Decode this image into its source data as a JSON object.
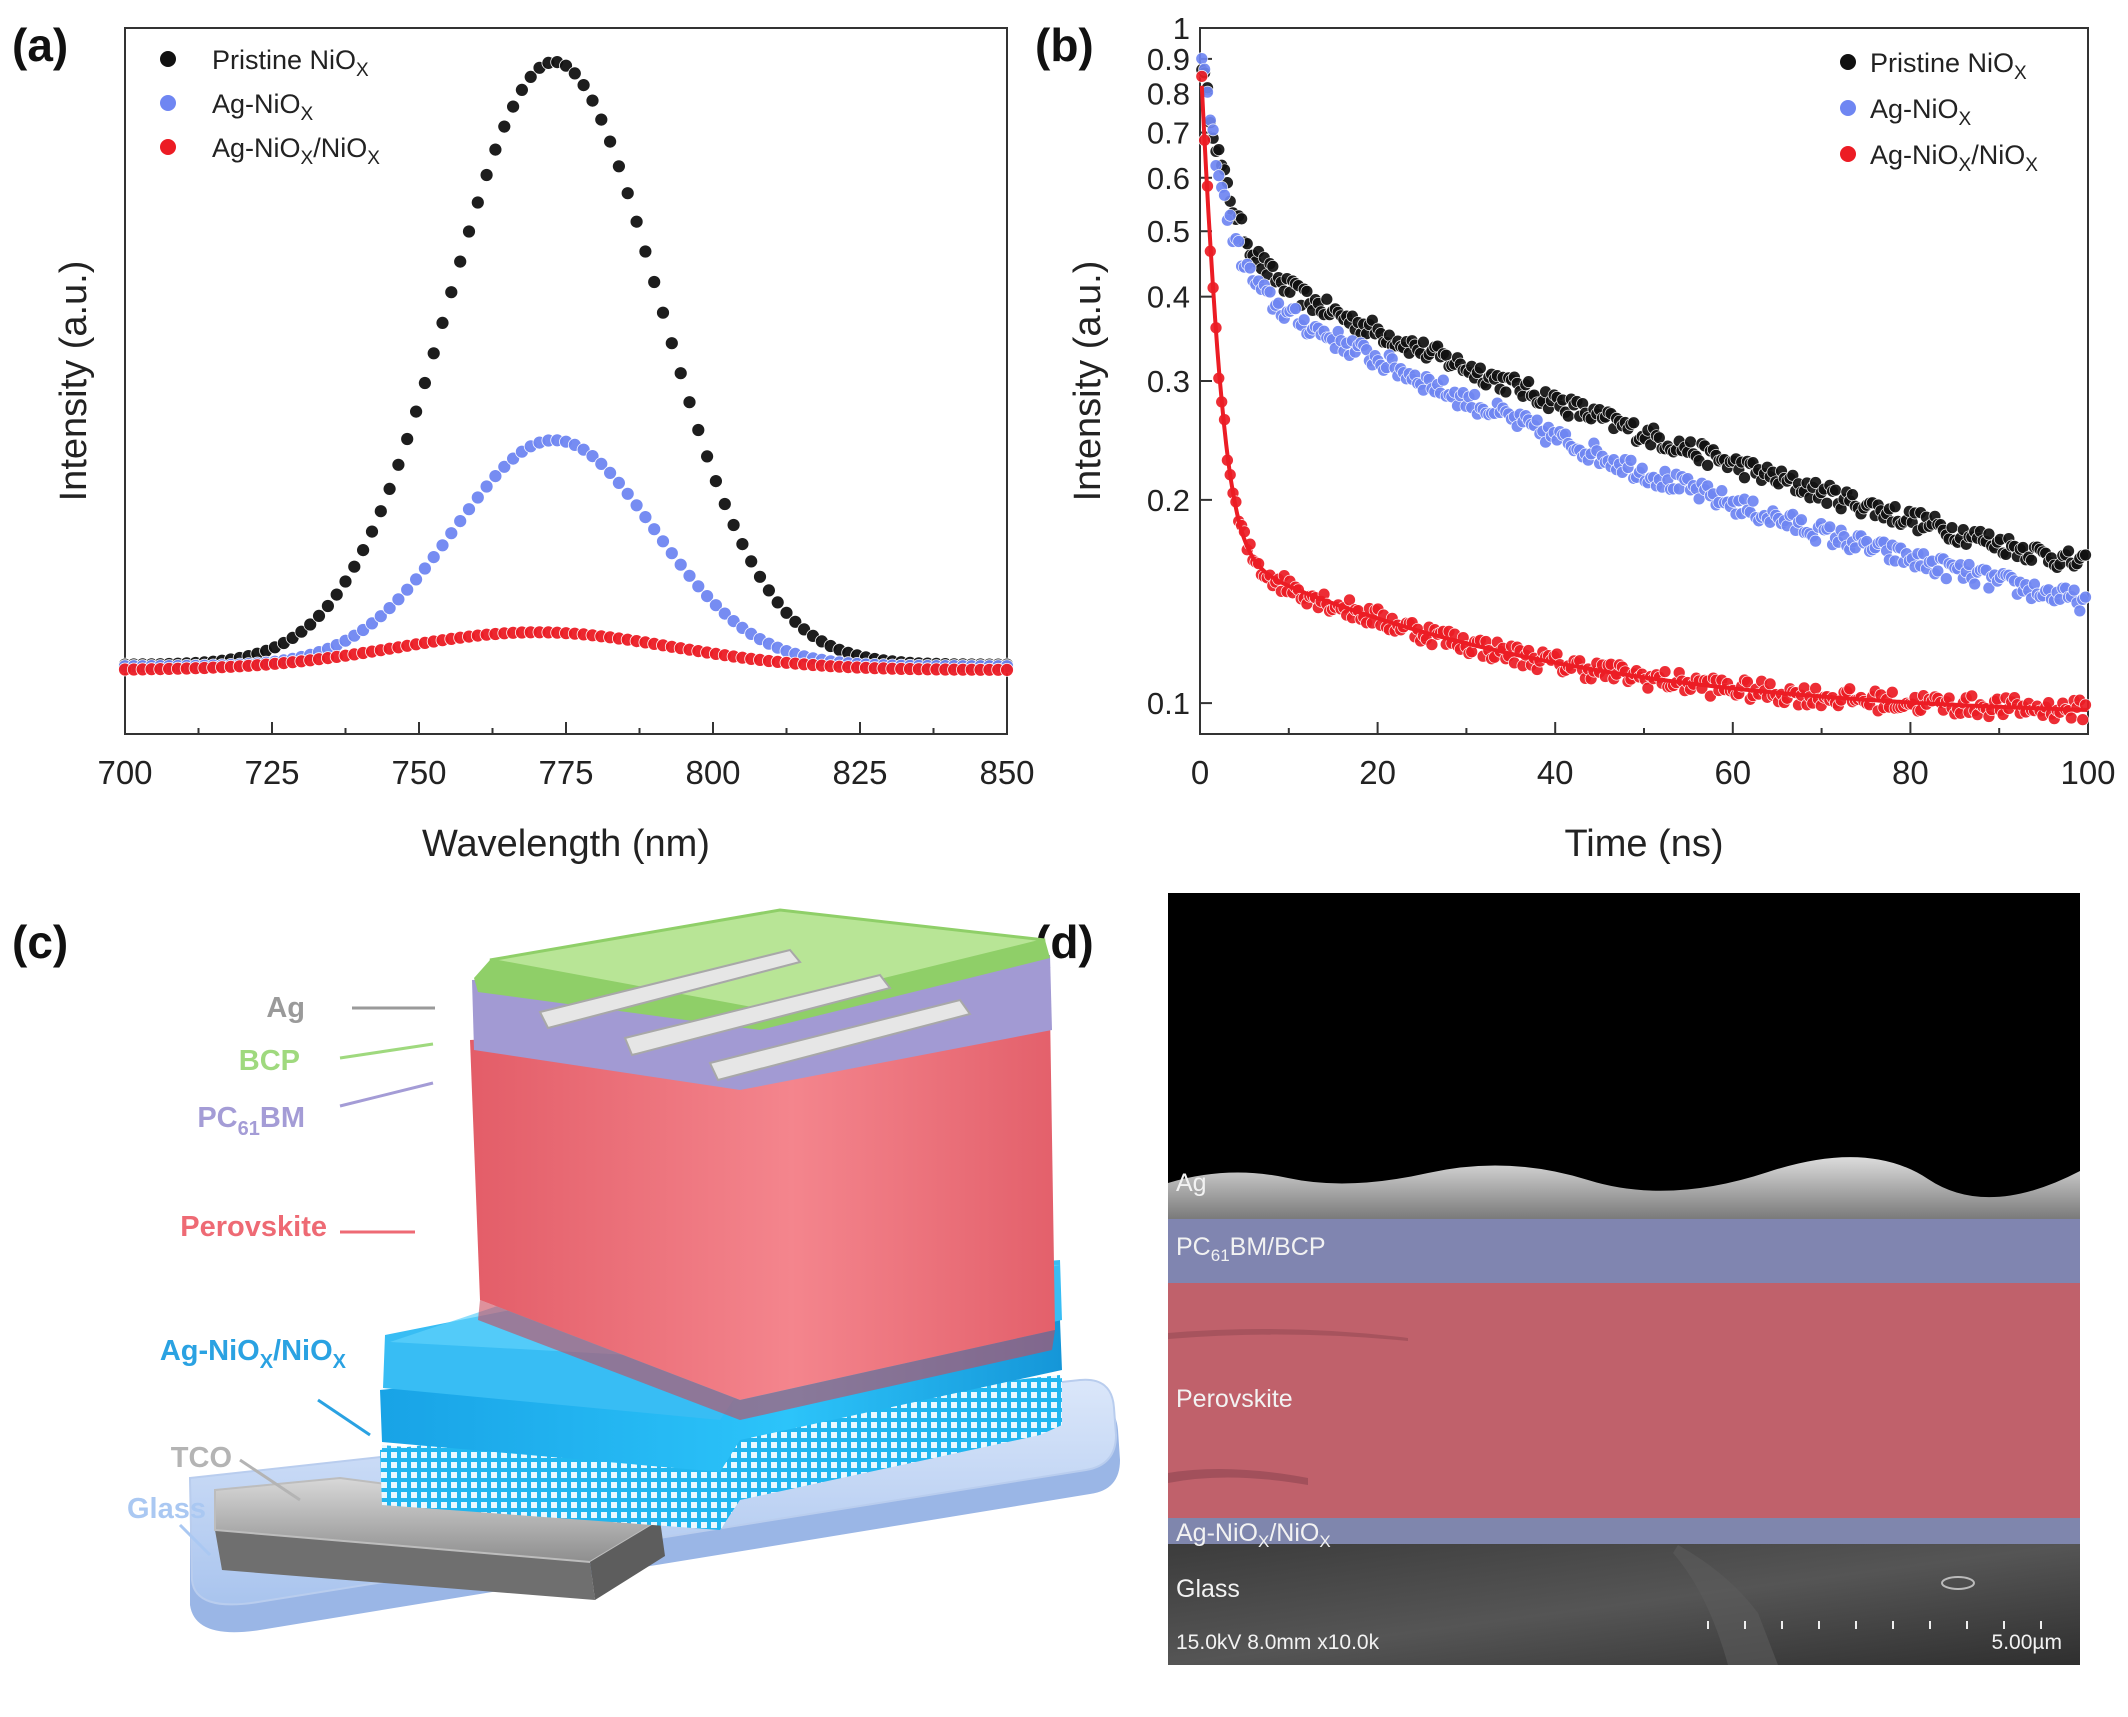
{
  "panels": {
    "a": {
      "letter": "(a)"
    },
    "b": {
      "letter": "(b)"
    },
    "c": {
      "letter": "(c)"
    },
    "d": {
      "letter": "(d)"
    }
  },
  "colors": {
    "pristine": "#111111",
    "ag_niox": "#6f86f2",
    "ag_niox_niox": "#ec1c24"
  },
  "chart_data": [
    {
      "panel": "a",
      "type": "scatter",
      "xlabel": "Wavelength (nm)",
      "ylabel": "Intensity (a.u.)",
      "xlim": [
        700,
        850
      ],
      "xticks": [
        700,
        725,
        750,
        775,
        800,
        825,
        850
      ],
      "y_tick_labels": false,
      "y_scale": "linear (arbitrary units)",
      "legend_position": "top-left",
      "series": [
        {
          "name": "Pristine NiOX",
          "name_base": "Pristine NiO",
          "name_sub": "X",
          "shape": "gaussian",
          "peak_x": 773,
          "peak_y": 0.8,
          "fwhm": 42,
          "baseline": 0.015
        },
        {
          "name": "Ag-NiOX",
          "name_base": "Ag-NiO",
          "name_sub": "X",
          "shape": "gaussian",
          "peak_x": 773,
          "peak_y": 0.3,
          "fwhm": 40,
          "baseline": 0.013
        },
        {
          "name": "Ag-NiOX/NiOX",
          "name_base": "Ag-NiO",
          "name_sub": "X",
          "name_mid": "/NiO",
          "name_sub2": "X",
          "shape": "gaussian",
          "peak_x": 770,
          "peak_y": 0.05,
          "fwhm": 55,
          "baseline": 0.008
        }
      ]
    },
    {
      "panel": "b",
      "type": "scatter",
      "xlabel": "Time (ns)",
      "ylabel": "Intensity (a.u.)",
      "xlim": [
        0,
        100
      ],
      "xticks": [
        0,
        20,
        40,
        60,
        80,
        100
      ],
      "ylim": [
        0.09,
        1
      ],
      "y_scale": "log",
      "yticks": [
        0.1,
        0.2,
        0.3,
        0.4,
        0.5,
        0.6,
        0.7,
        0.8,
        0.9,
        1
      ],
      "ytick_labels": [
        "0.1",
        "0.2",
        "0.3",
        "0.4",
        "0.5",
        "0.6",
        "0.7",
        "0.8",
        "0.9",
        "1"
      ],
      "legend_position": "top-right",
      "series": [
        {
          "name": "Pristine NiOX",
          "name_base": "Pristine NiO",
          "name_sub": "X",
          "model": "biexponential",
          "A1": 0.47,
          "tau1": 2.5,
          "A2": 0.37,
          "tau2": 60,
          "offset": 0.09,
          "fit_line": false
        },
        {
          "name": "Ag-NiOX",
          "name_base": "Ag-NiO",
          "name_sub": "X",
          "model": "biexponential",
          "A1": 0.55,
          "tau1": 2.0,
          "A2": 0.34,
          "tau2": 50,
          "offset": 0.095,
          "fit_line": false
        },
        {
          "name": "Ag-NiOX/NiOX",
          "name_base": "Ag-NiO",
          "name_sub": "X",
          "name_mid": "/NiO",
          "name_sub2": "X",
          "model": "biexponential",
          "A1": 0.76,
          "tau1": 1.3,
          "A2": 0.075,
          "tau2": 30,
          "offset": 0.095,
          "fit_line": true
        }
      ]
    }
  ],
  "device_schematic": {
    "panel": "c",
    "layers": [
      {
        "label": "Ag",
        "color": "#9a9a9a"
      },
      {
        "label": "BCP",
        "color": "#a6dd84"
      },
      {
        "label_base": "PC",
        "label_sub": "61",
        "label_rest": "BM",
        "color": "#a9a3d8"
      },
      {
        "label": "Perovskite",
        "color": "#ef6b76"
      },
      {
        "label_base": "Ag-NiO",
        "label_sub": "X",
        "label_mid": "/NiO",
        "label_sub2": "X",
        "color": "#2aaee8"
      },
      {
        "label": "TCO",
        "color": "#b4b4b4"
      },
      {
        "label": "Glass",
        "color": "#aac8f2"
      }
    ]
  },
  "sem": {
    "panel": "d",
    "labels": {
      "ag": "Ag",
      "pcbm_base": "PC",
      "pcbm_sub": "61",
      "pcbm_rest": "BM/BCP",
      "perovskite": "Perovskite",
      "htl_base": "Ag-NiO",
      "htl_sub": "X",
      "htl_mid": "/NiO",
      "htl_sub2": "X",
      "glass": "Glass"
    },
    "info": "15.0kV 8.0mm x10.0k",
    "scale_bar": "5.00µm"
  }
}
